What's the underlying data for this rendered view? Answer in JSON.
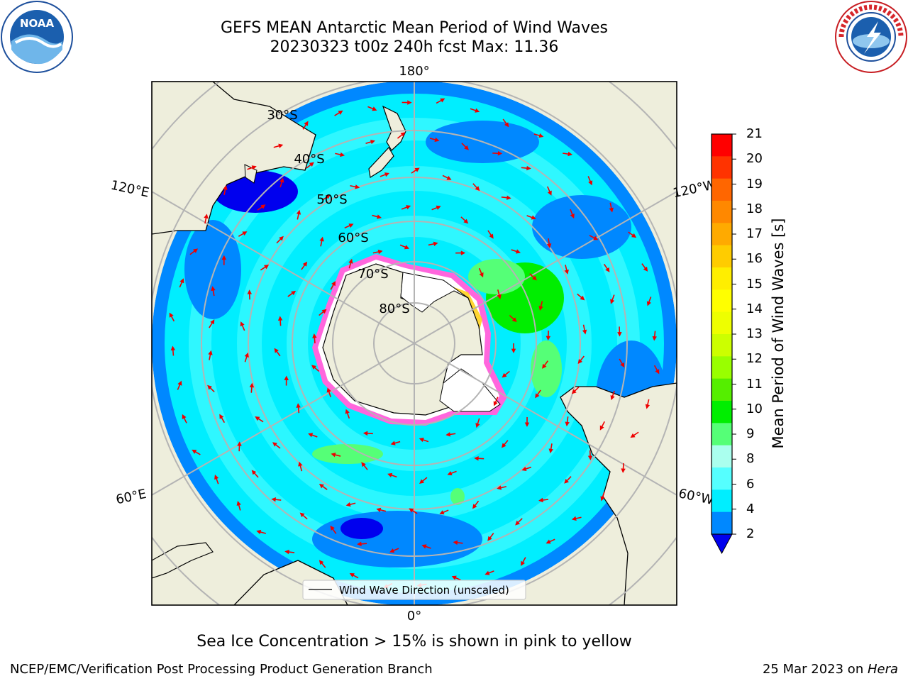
{
  "title": {
    "line1": "GEFS MEAN Antarctic Mean Period of Wind Waves",
    "line2": "20230323 t00z 240h fcst   Max: 11.36"
  },
  "map": {
    "projection": "south polar stereographic",
    "longitude_labels": [
      "180°",
      "120°E",
      "120°W",
      "60°E",
      "60°W",
      "0°"
    ],
    "latitude_labels": [
      "30°S",
      "40°S",
      "50°S",
      "60°S",
      "70°S",
      "80°S"
    ],
    "legend_label": "Wind Wave Direction (unscaled)",
    "arrow_color": "#ee0000",
    "land_color": "#eeeedc",
    "grid_color": "#b4b4b4"
  },
  "colorbar": {
    "label": "Mean Period of Wind Waves [s]",
    "ticks": [
      "21",
      "20",
      "19",
      "18",
      "17",
      "16",
      "15",
      "14",
      "13",
      "12",
      "11",
      "10",
      "9",
      "8",
      "6",
      "4",
      "2"
    ],
    "colors_top_to_bottom": [
      "#ff0000",
      "#ff3300",
      "#ff6600",
      "#ff8800",
      "#ffaa00",
      "#ffcc00",
      "#ffee00",
      "#ffff00",
      "#eeff00",
      "#ccff00",
      "#99ff00",
      "#55ee00",
      "#00ee00",
      "#55ff77",
      "#aaffee",
      "#55ffff",
      "#00eeff",
      "#0088ff"
    ],
    "under_color": "#0000ee"
  },
  "caption": "Sea Ice Concentration > 15% is shown in pink to yellow",
  "credit_left": "NCEP/EMC/Verification Post Processing Product Generation Branch",
  "credit_right_prefix": "25 Mar 2023 on ",
  "credit_right_host": "Hera",
  "logos": {
    "left": "noaa-logo",
    "right": "nws-logo",
    "left_text": "NOAA"
  }
}
